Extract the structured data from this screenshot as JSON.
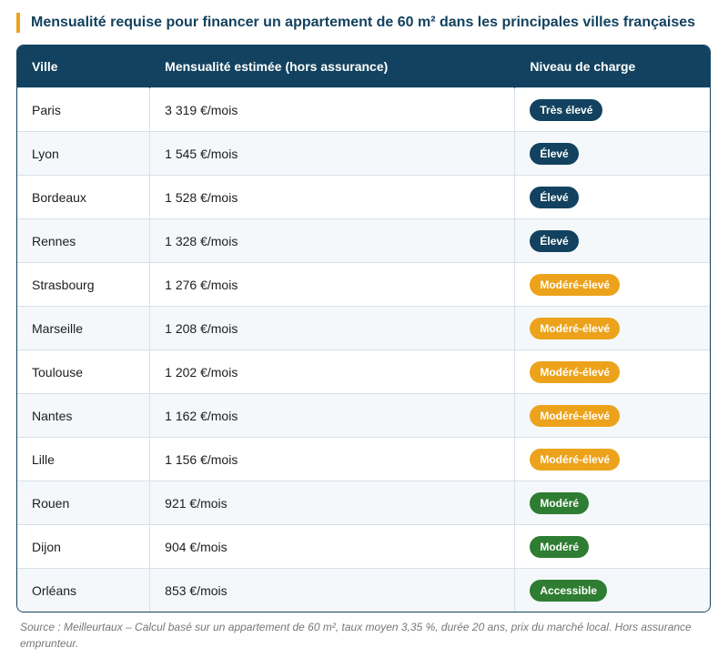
{
  "title": "Mensualité requise pour financer un appartement de 60 m² dans les principales villes françaises",
  "table": {
    "headers": [
      "Ville",
      "Mensualité estimée (hors assurance)",
      "Niveau de charge"
    ],
    "rows": [
      [
        "Paris",
        "3 319 €/mois",
        {
          "label": "Très élevé",
          "color": "#12425f"
        }
      ],
      [
        "Lyon",
        "1 545 €/mois",
        {
          "label": "Élevé",
          "color": "#12425f"
        }
      ],
      [
        "Bordeaux",
        "1 528 €/mois",
        {
          "label": "Élevé",
          "color": "#12425f"
        }
      ],
      [
        "Rennes",
        "1 328 €/mois",
        {
          "label": "Élevé",
          "color": "#12425f"
        }
      ],
      [
        "Strasbourg",
        "1 276 €/mois",
        {
          "label": "Modéré-élevé",
          "color": "#eca31b"
        }
      ],
      [
        "Marseille",
        "1 208 €/mois",
        {
          "label": "Modéré-élevé",
          "color": "#eca31b"
        }
      ],
      [
        "Toulouse",
        "1 202 €/mois",
        {
          "label": "Modéré-élevé",
          "color": "#eca31b"
        }
      ],
      [
        "Nantes",
        "1 162 €/mois",
        {
          "label": "Modéré-élevé",
          "color": "#eca31b"
        }
      ],
      [
        "Lille",
        "1 156 €/mois",
        {
          "label": "Modéré-élevé",
          "color": "#eca31b"
        }
      ],
      [
        "Rouen",
        "921 €/mois",
        {
          "label": "Modéré",
          "color": "#2e7d32"
        }
      ],
      [
        "Dijon",
        "904 €/mois",
        {
          "label": "Modéré",
          "color": "#2e7d32"
        }
      ],
      [
        "Orléans",
        "853 €/mois",
        {
          "label": "Accessible",
          "color": "#2e7d32"
        }
      ]
    ]
  },
  "source": "Source : Meilleurtaux – Calcul basé sur un appartement de 60 m², taux moyen 3,35 %, durée 20 ans, prix du marché local. Hors assurance emprunteur."
}
